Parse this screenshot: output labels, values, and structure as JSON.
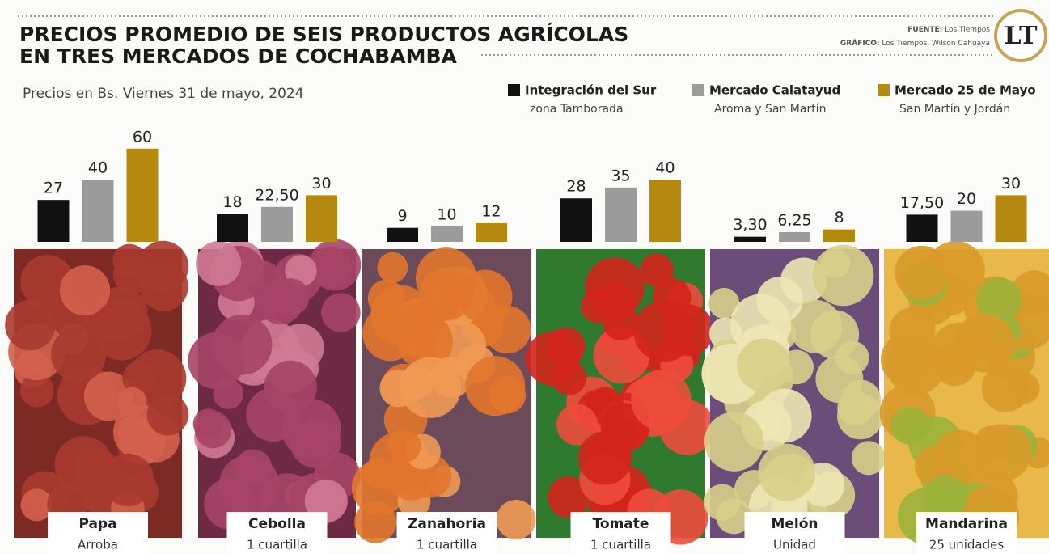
{
  "chart_data": {
    "type": "bar",
    "title": [
      "PRECIOS PROMEDIO DE SEIS PRODUCTOS AGRÍCOLAS",
      "EN TRES MERCADOS DE COCHABAMBA"
    ],
    "subtitle": "Precios en Bs. Viernes 31 de mayo, 2024",
    "source": {
      "label": "FUENTE:",
      "text": "Los Tiempos"
    },
    "credit": {
      "label": "GRÁFICO:",
      "text": "Los Tiempos, Wilson Cahuaya"
    },
    "logo": "LT",
    "categories": [
      "Papa",
      "Cebolla",
      "Zanahoria",
      "Tomate",
      "Melón",
      "Mandarina"
    ],
    "units": [
      "Arroba",
      "1 cuartilla",
      "1 cuartilla",
      "1 cuartilla",
      "Unidad",
      "25 unidades"
    ],
    "series": [
      {
        "name": "Integración del Sur",
        "location": "zona Tamborada",
        "color": "#111111",
        "values": [
          27,
          18,
          9,
          28,
          3.3,
          17.5
        ],
        "value_labels": [
          "27",
          "18",
          "9",
          "28",
          "3,30",
          "17,50"
        ]
      },
      {
        "name": "Mercado Calatayud",
        "location": "Aroma y San Martín",
        "color": "#9b9b9b",
        "values": [
          40,
          22.5,
          10,
          35,
          6.25,
          20
        ],
        "value_labels": [
          "40",
          "22,50",
          "10",
          "35",
          "6,25",
          "20"
        ]
      },
      {
        "name": "Mercado 25 de Mayo",
        "location": "San Martín y Jordán",
        "color": "#b5880f",
        "values": [
          60,
          30,
          12,
          40,
          8,
          30
        ],
        "value_labels": [
          "60",
          "30",
          "12",
          "40",
          "8",
          "30"
        ]
      }
    ]
  }
}
